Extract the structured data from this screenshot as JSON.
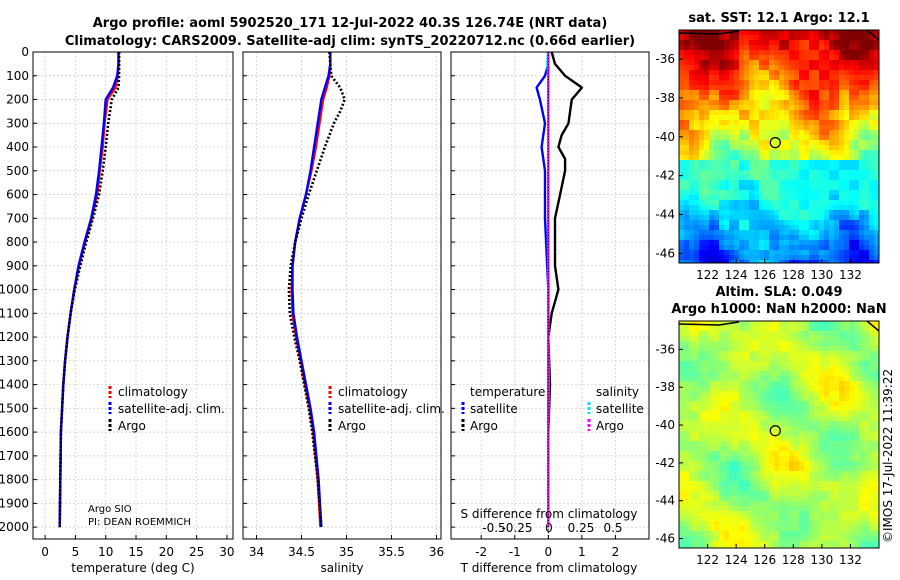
{
  "titles": {
    "line1": "Argo profile: aoml 5902520_171 12-Jul-2022 40.3S 126.74E (NRT data)",
    "line2": "Climatology: CARS2009. Satellite-adj clim: synTS_20220712.nc (0.66d earlier)"
  },
  "colors": {
    "climatology": "#ff0000",
    "satellite_adj": "#0000ff",
    "argo": "#000000",
    "temp_satellite": "#0000ff",
    "sal_satellite": "#00e5ff",
    "sal_argo": "#ff00ff"
  },
  "labels": {
    "argo_sio": "Argo SIO",
    "pi": "PI: DEAN ROEMMICH",
    "imos": "©IMOS 17-Jul-2022 11:39:22"
  },
  "chart_data": [
    {
      "type": "line",
      "id": "temperature",
      "xlabel": "temperature (deg C)",
      "ylabel": "",
      "xlim": [
        -2,
        31
      ],
      "ylim": [
        2050,
        0
      ],
      "xticks": [
        0,
        5,
        10,
        15,
        20,
        25,
        30
      ],
      "yticks": [
        0,
        100,
        200,
        300,
        400,
        500,
        600,
        700,
        800,
        900,
        1000,
        1100,
        1200,
        1300,
        1400,
        1500,
        1600,
        1700,
        1800,
        1900,
        2000
      ],
      "legend": [
        "climatology",
        "satellite-adj. clim.",
        "Argo"
      ],
      "series": [
        {
          "name": "climatology",
          "style": "solid",
          "depth": [
            0,
            50,
            100,
            150,
            200,
            300,
            400,
            500,
            600,
            700,
            800,
            900,
            1000,
            1100,
            1200,
            1300,
            1400,
            1500,
            1600,
            1800,
            2000
          ],
          "values": [
            12.1,
            12.1,
            12.0,
            11.6,
            10.3,
            9.8,
            9.5,
            9.0,
            8.6,
            7.7,
            6.6,
            5.6,
            4.8,
            4.2,
            3.7,
            3.3,
            3.0,
            2.8,
            2.6,
            2.5,
            2.4
          ]
        },
        {
          "name": "satellite-adj. clim.",
          "style": "solid",
          "depth": [
            0,
            50,
            100,
            150,
            200,
            300,
            400,
            500,
            600,
            700,
            800,
            900,
            1000,
            1100,
            1200,
            1300,
            1400,
            1500,
            1600,
            1800,
            2000
          ],
          "values": [
            12.1,
            12.1,
            11.9,
            11.2,
            10.0,
            9.7,
            9.3,
            8.9,
            8.4,
            7.6,
            6.5,
            5.5,
            4.8,
            4.2,
            3.7,
            3.3,
            3.0,
            2.8,
            2.6,
            2.5,
            2.4
          ]
        },
        {
          "name": "Argo",
          "style": "dotted",
          "depth": [
            0,
            50,
            100,
            150,
            200,
            300,
            400,
            500,
            600,
            700,
            800,
            900,
            1000,
            1100,
            1200,
            1300,
            1400,
            1500,
            1600,
            1800,
            2000
          ],
          "values": [
            12.2,
            12.2,
            12.2,
            12.1,
            11.0,
            10.4,
            10.0,
            9.5,
            8.9,
            7.9,
            6.8,
            5.8,
            4.9,
            4.2,
            3.7,
            3.3,
            3.0,
            2.8,
            2.6,
            2.5,
            2.4
          ]
        }
      ]
    },
    {
      "type": "line",
      "id": "salinity",
      "xlabel": "salinity",
      "ylabel": "",
      "xlim": [
        33.85,
        36.05
      ],
      "ylim": [
        2050,
        0
      ],
      "xticks": [
        34,
        34.5,
        35,
        35.5,
        36
      ],
      "legend": [
        "climatology",
        "satellite-adj. clim.",
        "Argo"
      ],
      "series": [
        {
          "name": "climatology",
          "style": "solid",
          "depth": [
            0,
            50,
            100,
            150,
            200,
            300,
            400,
            500,
            600,
            700,
            800,
            900,
            1000,
            1100,
            1200,
            1300,
            1400,
            1500,
            1600,
            1800,
            2000
          ],
          "values": [
            34.82,
            34.82,
            34.81,
            34.78,
            34.74,
            34.7,
            34.66,
            34.61,
            34.55,
            34.48,
            34.43,
            34.4,
            34.39,
            34.4,
            34.44,
            34.49,
            34.54,
            34.59,
            34.63,
            34.68,
            34.71
          ]
        },
        {
          "name": "satellite-adj. clim.",
          "style": "solid",
          "depth": [
            0,
            50,
            100,
            150,
            200,
            300,
            400,
            500,
            600,
            700,
            800,
            900,
            1000,
            1100,
            1200,
            1300,
            1400,
            1500,
            1600,
            1800,
            2000
          ],
          "values": [
            34.82,
            34.82,
            34.8,
            34.76,
            34.72,
            34.68,
            34.64,
            34.6,
            34.55,
            34.48,
            34.43,
            34.4,
            34.4,
            34.41,
            34.45,
            34.5,
            34.55,
            34.6,
            34.64,
            34.69,
            34.72
          ]
        },
        {
          "name": "Argo",
          "style": "dotted",
          "depth": [
            0,
            50,
            100,
            150,
            200,
            250,
            300,
            400,
            500,
            600,
            700,
            800,
            900,
            1000,
            1100,
            1200,
            1300,
            1400,
            1500,
            1600,
            1800,
            2000
          ],
          "values": [
            34.81,
            34.82,
            34.83,
            34.93,
            34.98,
            34.93,
            34.86,
            34.76,
            34.67,
            34.58,
            34.5,
            34.43,
            34.38,
            34.36,
            34.37,
            34.42,
            34.48,
            34.53,
            34.58,
            34.62,
            34.68,
            34.72
          ]
        }
      ]
    },
    {
      "type": "line",
      "id": "difference",
      "xlabel": "T difference from climatology",
      "xlabel_top": "S difference from climatology",
      "xlim": [
        -2.9,
        3.0
      ],
      "ylim": [
        2050,
        0
      ],
      "xticks": [
        -2,
        -1,
        0,
        1,
        2
      ],
      "xticks_salinity": [
        -0.5,
        -0.25,
        0,
        0.25,
        0.5
      ],
      "legend_temperature": [
        "temperature",
        "satellite",
        "Argo"
      ],
      "legend_salinity": [
        "salinity",
        "satellite",
        "Argo"
      ],
      "series": [
        {
          "name": "temperature satellite",
          "style": "solid",
          "depth": [
            0,
            50,
            100,
            150,
            200,
            300,
            400,
            500,
            700,
            1000,
            1500,
            2000
          ],
          "values": [
            0.0,
            0.0,
            -0.1,
            -0.35,
            -0.25,
            -0.1,
            -0.2,
            -0.1,
            -0.1,
            0.0,
            0.0,
            0.0
          ]
        },
        {
          "name": "temperature Argo",
          "style": "solid",
          "depth": [
            0,
            50,
            100,
            130,
            150,
            200,
            250,
            300,
            350,
            400,
            450,
            500,
            600,
            700,
            800,
            900,
            1000,
            1100,
            1200,
            1400,
            1600,
            1800,
            2000
          ],
          "values": [
            0.1,
            0.2,
            0.5,
            0.8,
            1.0,
            0.7,
            0.65,
            0.6,
            0.4,
            0.3,
            0.5,
            0.5,
            0.35,
            0.2,
            0.2,
            0.2,
            0.3,
            0.1,
            0.0,
            0.05,
            0.0,
            0.0,
            0.0
          ]
        },
        {
          "name": "salinity satellite",
          "style": "solid",
          "depth": [
            0,
            50,
            100,
            200,
            400,
            600,
            800,
            1000,
            1200,
            1400,
            1600,
            1800,
            2000
          ],
          "values": [
            -0.01,
            -0.03,
            0.0,
            -0.01,
            0.0,
            0.0,
            -0.01,
            0.01,
            0.0,
            0.01,
            0.0,
            0.0,
            0.0
          ]
        },
        {
          "name": "salinity Argo",
          "style": "solid",
          "depth": [
            0,
            100,
            200,
            400,
            600,
            800,
            1000,
            1200,
            1400,
            1600,
            1800,
            2000
          ],
          "values": [
            0.0,
            0.0,
            0.0,
            0.0,
            0.0,
            0.0,
            0.0,
            0.0,
            0.0,
            0.0,
            0.0,
            0.0
          ]
        }
      ]
    },
    {
      "type": "heatmap",
      "id": "sst_map",
      "title": "sat. SST: 12.1 Argo: 12.1",
      "xlim": [
        120,
        134
      ],
      "ylim": [
        -46.5,
        -34.5
      ],
      "xticks": [
        122,
        124,
        126,
        128,
        130,
        132
      ],
      "yticks": [
        -36,
        -38,
        -40,
        -42,
        -44,
        -46
      ],
      "float_position": {
        "lon": 126.74,
        "lat": -40.3
      }
    },
    {
      "type": "heatmap",
      "id": "sla_map",
      "title": "Altim. SLA: 0.049",
      "subtitle": "Argo h1000: NaN h2000: NaN",
      "xlim": [
        120,
        134
      ],
      "ylim": [
        -46.5,
        -34.5
      ],
      "xticks": [
        122,
        124,
        126,
        128,
        130,
        132
      ],
      "yticks": [
        -36,
        -38,
        -40,
        -42,
        -44,
        -46
      ],
      "float_position": {
        "lon": 126.74,
        "lat": -40.3
      }
    }
  ]
}
